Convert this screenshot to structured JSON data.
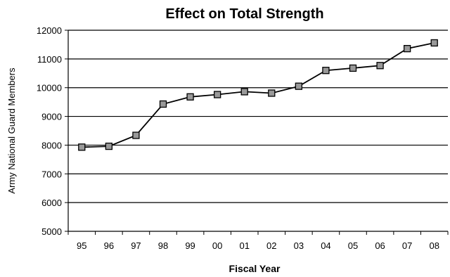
{
  "chart_data": {
    "type": "line",
    "title": "Effect on Total Strength",
    "xlabel": "Fiscal Year",
    "ylabel": "Army National Guard Members",
    "categories": [
      "95",
      "96",
      "97",
      "98",
      "99",
      "00",
      "01",
      "02",
      "03",
      "04",
      "05",
      "06",
      "07",
      "08"
    ],
    "series": [
      {
        "values": [
          7930,
          7960,
          8340,
          9430,
          9680,
          9760,
          9860,
          9810,
          10050,
          10600,
          10680,
          10770,
          11360,
          11560
        ]
      }
    ],
    "ylim": [
      5000,
      12000
    ],
    "yticks": [
      5000,
      6000,
      7000,
      8000,
      9000,
      10000,
      11000,
      12000
    ],
    "grid": true,
    "legend": "none",
    "colors": {
      "line": "#000000",
      "marker_fill": "#999999",
      "marker_stroke": "#000000",
      "grid": "#000000"
    }
  }
}
